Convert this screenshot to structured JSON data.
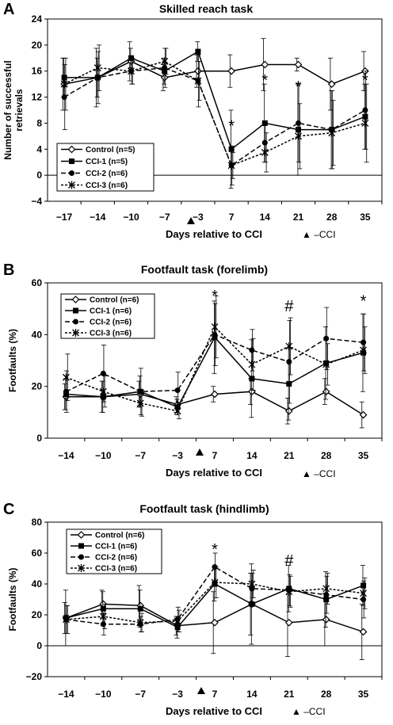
{
  "chart_data": [
    {
      "panel": "A",
      "type": "line",
      "title": "Skilled reach task",
      "xlabel": "Days relative to CCI",
      "ylabel": [
        "Number of successful",
        "retrievals"
      ],
      "categories": [
        "−17",
        "−14",
        "−10",
        "−7",
        "−3",
        "7",
        "14",
        "21",
        "28",
        "35"
      ],
      "ylim": [
        -4,
        24
      ],
      "yticks": [
        -4,
        0,
        4,
        8,
        12,
        16,
        20,
        24
      ],
      "cci_marker_label": "▲ –CCI",
      "series": [
        {
          "name": "Control (n=5)",
          "marker": "diamond-open",
          "dash": "solid",
          "values": [
            14,
            15,
            17.5,
            15,
            16,
            16,
            17,
            17,
            14,
            16
          ],
          "errors": [
            4,
            4.5,
            3,
            2,
            2.5,
            2.5,
            4,
            1,
            4,
            3
          ]
        },
        {
          "name": "CCI-1 (n=5)",
          "marker": "square-filled",
          "dash": "solid",
          "values": [
            15,
            15,
            18,
            16,
            19,
            4,
            8,
            7,
            7,
            9
          ],
          "errors": [
            3,
            3,
            1.5,
            2,
            1.5,
            6,
            6,
            7,
            6,
            5
          ]
        },
        {
          "name": "CCI-2 (n=6)",
          "marker": "circle-filled",
          "dash": "dashed",
          "values": [
            12,
            15,
            16,
            16.5,
            14.5,
            1.5,
            5,
            8,
            7,
            10
          ],
          "errors": [
            5,
            4,
            2,
            3,
            4,
            3,
            3,
            6,
            6,
            6
          ]
        },
        {
          "name": "CCI-3 (n=6)",
          "marker": "asterisk",
          "dash": "short-dashed",
          "values": [
            14,
            16.5,
            16,
            17.5,
            14.5,
            1.5,
            3.5,
            6,
            6.5,
            8
          ],
          "errors": [
            4,
            3.5,
            2,
            2,
            3,
            2,
            3,
            5,
            5,
            6
          ]
        }
      ],
      "annotations": [
        {
          "text": "*",
          "category": "7",
          "y": 8
        },
        {
          "text": "*",
          "category": "14",
          "y": 15
        },
        {
          "text": "*",
          "category": "21",
          "y": 14
        },
        {
          "text": "*",
          "category": "35",
          "y": 15
        }
      ]
    },
    {
      "panel": "B",
      "type": "line",
      "title": "Footfault task (forelimb)",
      "xlabel": "Days relative to CCI",
      "ylabel": [
        "Footfaults (%)"
      ],
      "categories": [
        "−14",
        "−10",
        "−7",
        "−3",
        "7",
        "14",
        "21",
        "28",
        "35"
      ],
      "ylim": [
        0,
        60
      ],
      "yticks": [
        0,
        20,
        40,
        60
      ],
      "cci_marker_label": "▲ –CCI",
      "series": [
        {
          "name": "Control (n=6)",
          "marker": "diamond-open",
          "dash": "solid",
          "values": [
            16,
            16,
            17,
            13,
            17,
            18,
            10.5,
            18,
            9
          ],
          "errors": [
            5,
            6,
            5,
            3,
            3,
            5,
            5,
            5,
            5
          ]
        },
        {
          "name": "CCI-1 (n=6)",
          "marker": "square-filled",
          "dash": "solid",
          "values": [
            17,
            16,
            18,
            12,
            39,
            23,
            21,
            29,
            33
          ],
          "errors": [
            6,
            6,
            6,
            3,
            14,
            15,
            14,
            14,
            15
          ]
        },
        {
          "name": "CCI-2 (n=6)",
          "marker": "circle-filled",
          "dash": "dashed",
          "values": [
            18,
            25,
            18,
            18.5,
            40,
            34,
            29.5,
            38.5,
            37
          ],
          "errors": [
            8,
            11,
            9,
            7,
            12,
            8,
            16,
            12,
            11
          ]
        },
        {
          "name": "CCI-3 (n=6)",
          "marker": "asterisk",
          "dash": "short-dashed",
          "values": [
            23.5,
            18,
            13.5,
            10.5,
            43,
            28.5,
            35.5,
            28.5,
            34
          ],
          "errors": [
            9,
            6,
            5,
            3,
            12,
            10,
            11,
            8,
            9
          ]
        }
      ],
      "annotations": [
        {
          "text": "*",
          "category": "7",
          "y": 56
        },
        {
          "text": "#",
          "category": "21",
          "y": 52
        },
        {
          "text": "*",
          "category": "35",
          "y": 54
        }
      ]
    },
    {
      "panel": "C",
      "type": "line",
      "title": "Footfault task (hindlimb)",
      "xlabel": "Days relative to CCI",
      "ylabel": [
        "Footfaults (%)"
      ],
      "categories": [
        "−14",
        "−10",
        "−7",
        "−3",
        "7",
        "14",
        "21",
        "28",
        "35"
      ],
      "ylim": [
        -20,
        80
      ],
      "yticks": [
        -20,
        0,
        20,
        40,
        60,
        80
      ],
      "cci_marker_label": "▲ –CCI",
      "series": [
        {
          "name": "Control (n=6)",
          "marker": "diamond-open",
          "dash": "solid",
          "values": [
            18,
            27,
            26,
            13,
            15,
            27,
            15,
            17,
            9
          ],
          "errors": [
            10,
            9,
            13,
            6,
            20,
            20,
            22,
            17,
            18
          ]
        },
        {
          "name": "CCI-1 (n=6)",
          "marker": "square-filled",
          "dash": "solid",
          "values": [
            18,
            24,
            24,
            12,
            40,
            27,
            37,
            30,
            39
          ],
          "errors": [
            18,
            11,
            12,
            7,
            11,
            26,
            15,
            18,
            13
          ]
        },
        {
          "name": "CCI-2 (n=6)",
          "marker": "circle-filled",
          "dash": "dashed",
          "values": [
            17,
            14,
            14,
            17,
            51,
            37,
            36,
            33,
            30
          ],
          "errors": [
            9,
            7,
            5,
            8,
            9,
            10,
            10,
            12,
            12
          ]
        },
        {
          "name": "CCI-3 (n=6)",
          "marker": "asterisk",
          "dash": "short-dashed",
          "values": [
            17,
            19,
            15,
            16,
            41,
            40,
            35,
            37,
            34
          ],
          "errors": [
            9,
            8,
            6,
            7,
            10,
            9,
            10,
            10,
            10
          ]
        }
      ],
      "annotations": [
        {
          "text": "*",
          "category": "7",
          "y": 64
        },
        {
          "text": "#",
          "category": "21",
          "y": 57
        }
      ]
    }
  ]
}
